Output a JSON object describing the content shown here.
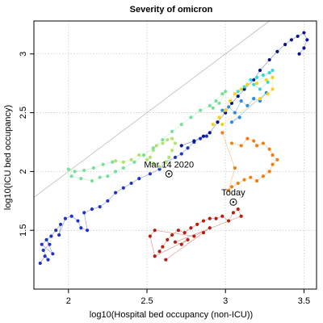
{
  "chart_data": {
    "type": "scatter",
    "title": "Severity of omicron",
    "xlabel": "log10(Hospital bed occupancy (non-ICU))",
    "ylabel": "log10(ICU bed occupancy)",
    "xlim": [
      1.78,
      3.58
    ],
    "ylim": [
      1.0,
      3.28
    ],
    "x_ticks": [
      2.0,
      2.5,
      3.0,
      3.5
    ],
    "y_ticks": [
      1.5,
      2.0,
      2.5,
      3.0
    ],
    "grid": true,
    "grid_style": "dotted",
    "diagonal_reference_line": true,
    "annotations": [
      {
        "label": "Mar 14 2020",
        "x": 2.64,
        "y": 1.98
      },
      {
        "label": "Today",
        "x": 3.05,
        "y": 1.74
      }
    ],
    "series": [
      {
        "color": "#1f33c8",
        "points": [
          [
            1.82,
            1.22
          ],
          [
            1.85,
            1.28
          ],
          [
            1.87,
            1.25
          ],
          [
            1.84,
            1.33
          ],
          [
            1.88,
            1.38
          ],
          [
            1.86,
            1.42
          ],
          [
            1.9,
            1.3
          ],
          [
            1.83,
            1.38
          ],
          [
            1.89,
            1.45
          ],
          [
            1.92,
            1.5
          ],
          [
            1.95,
            1.55
          ],
          [
            1.94,
            1.46
          ],
          [
            1.98,
            1.6
          ],
          [
            2.02,
            1.62
          ],
          [
            2.06,
            1.58
          ],
          [
            2.08,
            1.52
          ],
          [
            2.12,
            1.5
          ],
          [
            2.1,
            1.65
          ],
          [
            2.15,
            1.68
          ],
          [
            2.2,
            1.7
          ],
          [
            2.25,
            1.75
          ],
          [
            2.3,
            1.82
          ],
          [
            2.35,
            1.86
          ],
          [
            2.4,
            1.9
          ],
          [
            2.45,
            1.94
          ],
          [
            2.52,
            1.98
          ],
          [
            2.58,
            2.02
          ],
          [
            2.62,
            2.08
          ],
          [
            2.68,
            2.12
          ],
          [
            2.72,
            2.15
          ],
          [
            2.76,
            2.2
          ],
          [
            2.8,
            2.25
          ],
          [
            2.84,
            2.28
          ],
          [
            2.88,
            2.3
          ]
        ]
      },
      {
        "color": "#08148c",
        "points": [
          [
            2.72,
            2.22
          ],
          [
            2.8,
            2.26
          ],
          [
            2.86,
            2.3
          ],
          [
            2.9,
            2.33
          ],
          [
            2.95,
            2.42
          ],
          [
            3.0,
            2.5
          ],
          [
            3.04,
            2.58
          ],
          [
            3.08,
            2.64
          ],
          [
            3.12,
            2.7
          ],
          [
            3.18,
            2.78
          ],
          [
            3.22,
            2.86
          ],
          [
            3.28,
            2.95
          ],
          [
            3.33,
            3.02
          ],
          [
            3.38,
            3.08
          ],
          [
            3.42,
            3.12
          ],
          [
            3.46,
            3.15
          ],
          [
            3.5,
            3.18
          ],
          [
            3.52,
            3.12
          ],
          [
            3.5,
            3.05
          ],
          [
            3.47,
            3.0
          ]
        ]
      },
      {
        "color": "#2a8ae6",
        "points": [
          [
            2.98,
            2.52
          ],
          [
            3.02,
            2.55
          ],
          [
            3.06,
            2.5
          ],
          [
            3.1,
            2.6
          ],
          [
            3.14,
            2.56
          ],
          [
            3.18,
            2.62
          ],
          [
            3.22,
            2.6
          ],
          [
            3.26,
            2.67
          ],
          [
            3.04,
            2.42
          ],
          [
            3.09,
            2.46
          ]
        ]
      },
      {
        "color": "#35d9d6",
        "points": [
          [
            3.08,
            2.68
          ],
          [
            3.12,
            2.72
          ],
          [
            3.16,
            2.78
          ],
          [
            3.2,
            2.8
          ],
          [
            3.24,
            2.82
          ],
          [
            3.28,
            2.84
          ],
          [
            3.3,
            2.86
          ],
          [
            3.18,
            2.74
          ],
          [
            3.22,
            2.7
          ],
          [
            3.27,
            2.76
          ]
        ]
      },
      {
        "color": "#f2d21a",
        "points": [
          [
            2.92,
            2.4
          ],
          [
            2.96,
            2.46
          ],
          [
            3.0,
            2.52
          ],
          [
            3.03,
            2.6
          ],
          [
            3.06,
            2.66
          ],
          [
            3.1,
            2.7
          ],
          [
            3.14,
            2.74
          ],
          [
            3.2,
            2.75
          ],
          [
            3.26,
            2.78
          ],
          [
            3.3,
            2.8
          ],
          [
            3.3,
            2.7
          ],
          [
            3.27,
            2.66
          ],
          [
            3.22,
            2.62
          ],
          [
            2.98,
            2.4
          ]
        ]
      },
      {
        "color": "#f07f14",
        "points": [
          [
            3.04,
            2.24
          ],
          [
            3.1,
            2.22
          ],
          [
            3.14,
            2.28
          ],
          [
            3.18,
            2.26
          ],
          [
            3.2,
            2.22
          ],
          [
            3.24,
            2.24
          ],
          [
            3.28,
            2.19
          ],
          [
            3.3,
            2.14
          ],
          [
            3.33,
            2.1
          ],
          [
            3.3,
            2.06
          ],
          [
            3.28,
            2.0
          ],
          [
            3.24,
            1.96
          ],
          [
            3.2,
            1.92
          ],
          [
            3.16,
            1.95
          ],
          [
            3.12,
            1.93
          ],
          [
            3.08,
            1.9
          ],
          [
            3.04,
            1.87
          ],
          [
            3.02,
            1.84
          ],
          [
            3.06,
            2.03
          ],
          [
            2.98,
            2.33
          ]
        ]
      },
      {
        "color": "#b81e10",
        "points": [
          [
            2.58,
            1.32
          ],
          [
            2.6,
            1.36
          ],
          [
            2.63,
            1.42
          ],
          [
            2.66,
            1.46
          ],
          [
            2.7,
            1.5
          ],
          [
            2.74,
            1.48
          ],
          [
            2.78,
            1.52
          ],
          [
            2.82,
            1.55
          ],
          [
            2.86,
            1.58
          ],
          [
            2.9,
            1.6
          ],
          [
            2.94,
            1.6
          ],
          [
            2.98,
            1.62
          ],
          [
            3.02,
            1.58
          ],
          [
            3.05,
            1.65
          ],
          [
            3.08,
            1.68
          ],
          [
            3.1,
            1.62
          ],
          [
            2.68,
            1.4
          ],
          [
            2.72,
            1.38
          ],
          [
            2.76,
            1.42
          ],
          [
            2.55,
            1.28
          ],
          [
            2.52,
            1.45
          ],
          [
            2.55,
            1.5
          ],
          [
            2.8,
            1.45
          ],
          [
            2.9,
            1.52
          ],
          [
            2.62,
            1.25
          ],
          [
            2.86,
            1.48
          ]
        ]
      },
      {
        "color": "#b2e26e",
        "points": [
          [
            2.52,
            2.12
          ],
          [
            2.54,
            2.18
          ],
          [
            2.56,
            2.22
          ],
          [
            2.6,
            2.24
          ],
          [
            2.63,
            2.27
          ],
          [
            2.66,
            2.28
          ],
          [
            2.68,
            2.24
          ],
          [
            2.66,
            2.18
          ],
          [
            2.64,
            2.12
          ],
          [
            2.62,
            2.08
          ],
          [
            2.58,
            2.04
          ],
          [
            2.54,
            2.07
          ],
          [
            2.5,
            2.1
          ],
          [
            2.45,
            2.14
          ],
          [
            2.4,
            2.1
          ],
          [
            2.35,
            2.08
          ],
          [
            2.3,
            2.09
          ]
        ]
      },
      {
        "color": "#7bde9a",
        "points": [
          [
            2.28,
            2.08
          ],
          [
            2.22,
            2.06
          ],
          [
            2.16,
            2.03
          ],
          [
            2.1,
            2.01
          ],
          [
            2.04,
            2.0
          ],
          [
            2.0,
            2.02
          ],
          [
            2.02,
            1.96
          ],
          [
            2.08,
            1.94
          ],
          [
            2.15,
            1.92
          ],
          [
            2.2,
            1.95
          ],
          [
            2.25,
            1.96
          ],
          [
            2.3,
            2.0
          ],
          [
            2.35,
            2.03
          ],
          [
            2.42,
            2.08
          ],
          [
            2.48,
            2.14
          ],
          [
            2.54,
            2.2
          ],
          [
            2.6,
            2.27
          ],
          [
            2.66,
            2.34
          ],
          [
            2.72,
            2.4
          ],
          [
            2.78,
            2.46
          ],
          [
            2.84,
            2.52
          ],
          [
            2.9,
            2.56
          ],
          [
            2.94,
            2.6
          ],
          [
            2.98,
            2.66
          ],
          [
            3.0,
            2.68
          ],
          [
            2.96,
            2.58
          ],
          [
            2.92,
            2.54
          ]
        ]
      }
    ]
  }
}
